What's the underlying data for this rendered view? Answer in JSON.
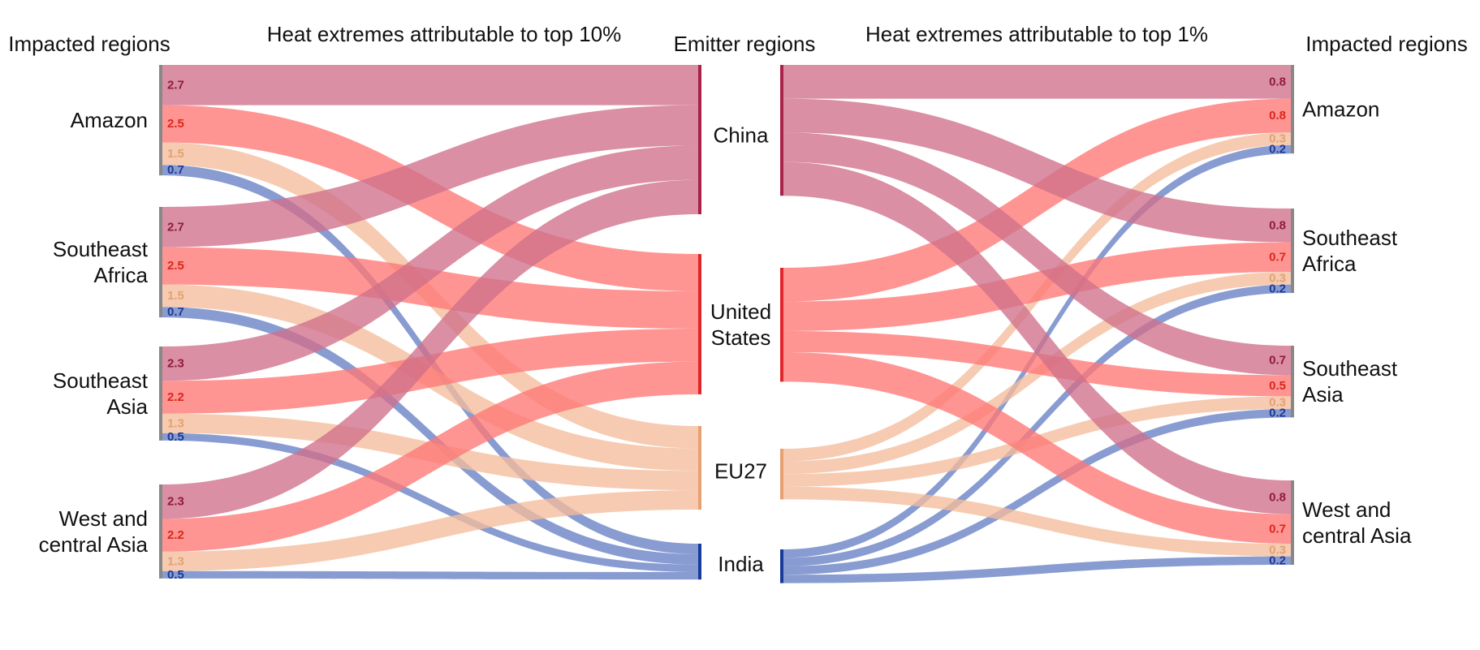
{
  "headers": {
    "impacted_left": "Impacted regions",
    "top10": "Heat extremes attributable to top 10%",
    "emitters": "Emitter regions",
    "top1": "Heat extremes attributable to top 1%",
    "impacted_right": "Impacted regions"
  },
  "impacted_regions": [
    {
      "id": "amazon",
      "lines": [
        "Amazon"
      ]
    },
    {
      "id": "se_africa",
      "lines": [
        "Southeast",
        "Africa"
      ]
    },
    {
      "id": "se_asia",
      "lines": [
        "Southeast",
        "Asia"
      ]
    },
    {
      "id": "wc_asia",
      "lines": [
        "West and",
        "central Asia"
      ]
    }
  ],
  "emitter_regions": [
    {
      "id": "china",
      "lines": [
        "China"
      ],
      "color": "#a8224a",
      "flow_color": "#d0708a"
    },
    {
      "id": "us",
      "lines": [
        "United",
        "States"
      ],
      "color": "#e0262a",
      "flow_color": "#ff7774"
    },
    {
      "id": "eu27",
      "lines": [
        "EU27"
      ],
      "color": "#e8a070",
      "flow_color": "#f4bd9c"
    },
    {
      "id": "india",
      "lines": [
        "India"
      ],
      "color": "#1a3a9a",
      "flow_color": "#6680c4"
    }
  ],
  "value_label_colors": {
    "china": "#8e1c3e",
    "us": "#d8281e",
    "eu27": "#e2a270",
    "india": "#1c3a96"
  },
  "chart_data": [
    {
      "type": "sankey",
      "title": "Heat extremes attributable to top 10%",
      "source_label": "Impacted regions",
      "target_label": "Emitter regions",
      "flows": [
        {
          "impacted": "Amazon",
          "emitter": "China",
          "value": 2.7,
          "label": "2.7"
        },
        {
          "impacted": "Amazon",
          "emitter": "United States",
          "value": 2.5,
          "label": "2.5"
        },
        {
          "impacted": "Amazon",
          "emitter": "EU27",
          "value": 1.5,
          "label": "1.5"
        },
        {
          "impacted": "Amazon",
          "emitter": "India",
          "value": 0.7,
          "label": "0.7"
        },
        {
          "impacted": "Southeast Africa",
          "emitter": "China",
          "value": 2.7,
          "label": "2.7"
        },
        {
          "impacted": "Southeast Africa",
          "emitter": "United States",
          "value": 2.5,
          "label": "2.5"
        },
        {
          "impacted": "Southeast Africa",
          "emitter": "EU27",
          "value": 1.5,
          "label": "1.5"
        },
        {
          "impacted": "Southeast Africa",
          "emitter": "India",
          "value": 0.7,
          "label": "0.7"
        },
        {
          "impacted": "Southeast Asia",
          "emitter": "China",
          "value": 2.3,
          "label": "2.3"
        },
        {
          "impacted": "Southeast Asia",
          "emitter": "United States",
          "value": 2.2,
          "label": "2.2"
        },
        {
          "impacted": "Southeast Asia",
          "emitter": "EU27",
          "value": 1.3,
          "label": "1.3"
        },
        {
          "impacted": "Southeast Asia",
          "emitter": "India",
          "value": 0.5,
          "label": "0.5"
        },
        {
          "impacted": "West and central Asia",
          "emitter": "China",
          "value": 2.3,
          "label": "2.3"
        },
        {
          "impacted": "West and central Asia",
          "emitter": "United States",
          "value": 2.2,
          "label": "2.2"
        },
        {
          "impacted": "West and central Asia",
          "emitter": "EU27",
          "value": 1.3,
          "label": "1.3"
        },
        {
          "impacted": "West and central Asia",
          "emitter": "India",
          "value": 0.5,
          "label": "0.5"
        }
      ]
    },
    {
      "type": "sankey",
      "title": "Heat extremes attributable to top 1%",
      "source_label": "Emitter regions",
      "target_label": "Impacted regions",
      "flows": [
        {
          "emitter": "China",
          "impacted": "Amazon",
          "value": 0.8,
          "label": "0.8"
        },
        {
          "emitter": "United States",
          "impacted": "Amazon",
          "value": 0.8,
          "label": "0.8"
        },
        {
          "emitter": "EU27",
          "impacted": "Amazon",
          "value": 0.3,
          "label": "0.3"
        },
        {
          "emitter": "India",
          "impacted": "Amazon",
          "value": 0.2,
          "label": "0.2"
        },
        {
          "emitter": "China",
          "impacted": "Southeast Africa",
          "value": 0.8,
          "label": "0.8"
        },
        {
          "emitter": "United States",
          "impacted": "Southeast Africa",
          "value": 0.7,
          "label": "0.7"
        },
        {
          "emitter": "EU27",
          "impacted": "Southeast Africa",
          "value": 0.3,
          "label": "0.3"
        },
        {
          "emitter": "India",
          "impacted": "Southeast Africa",
          "value": 0.2,
          "label": "0.2"
        },
        {
          "emitter": "China",
          "impacted": "Southeast Asia",
          "value": 0.7,
          "label": "0.7"
        },
        {
          "emitter": "United States",
          "impacted": "Southeast Asia",
          "value": 0.5,
          "label": "0.5"
        },
        {
          "emitter": "EU27",
          "impacted": "Southeast Asia",
          "value": 0.3,
          "label": "0.3"
        },
        {
          "emitter": "India",
          "impacted": "Southeast Asia",
          "value": 0.2,
          "label": "0.2"
        },
        {
          "emitter": "China",
          "impacted": "West and central Asia",
          "value": 0.8,
          "label": "0.8"
        },
        {
          "emitter": "United States",
          "impacted": "West and central Asia",
          "value": 0.7,
          "label": "0.7"
        },
        {
          "emitter": "EU27",
          "impacted": "West and central Asia",
          "value": 0.3,
          "label": "0.3"
        },
        {
          "emitter": "India",
          "impacted": "West and central Asia",
          "value": 0.2,
          "label": "0.2"
        }
      ]
    }
  ]
}
